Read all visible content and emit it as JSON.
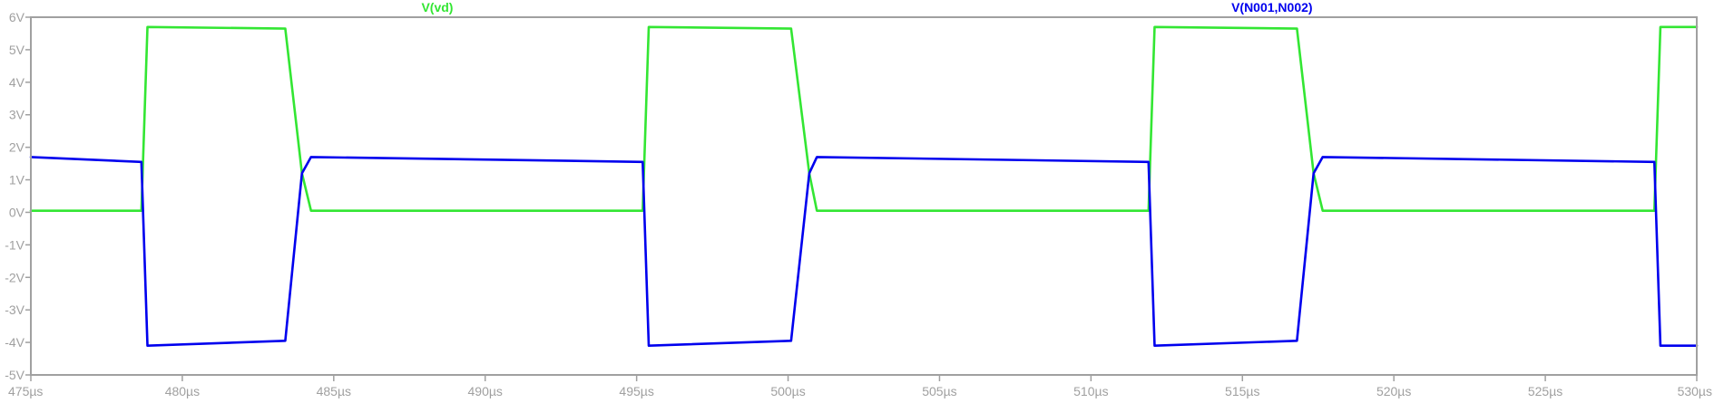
{
  "chart_data": {
    "type": "line",
    "title": "",
    "xlabel": "",
    "ylabel": "",
    "xlim": [
      475,
      530
    ],
    "ylim": [
      -5,
      6
    ],
    "x_ticks": [
      475,
      480,
      485,
      490,
      495,
      500,
      505,
      510,
      515,
      520,
      525,
      530
    ],
    "x_tick_labels": [
      "475µs",
      "480µs",
      "485µs",
      "490µs",
      "495µs",
      "500µs",
      "505µs",
      "510µs",
      "515µs",
      "520µs",
      "525µs",
      "530µs"
    ],
    "y_ticks": [
      -5,
      -4,
      -3,
      -2,
      -1,
      0,
      1,
      2,
      3,
      4,
      5,
      6
    ],
    "y_tick_labels": [
      "-5V",
      "-4V",
      "-3V",
      "-2V",
      "-1V",
      "0V",
      "1V",
      "2V",
      "3V",
      "4V",
      "5V",
      "6V"
    ],
    "grid": false,
    "legend_position": "top",
    "colors": {
      "frame": "#a0a0a0",
      "tick_text": "#a0a0a0"
    },
    "series": [
      {
        "name": "V(vd)",
        "color": "#33e633",
        "x": [
          475,
          478.65,
          478.85,
          483.4,
          483.95,
          484.25,
          495.2,
          495.4,
          500.1,
          500.7,
          500.95,
          511.9,
          512.1,
          516.8,
          517.35,
          517.65,
          528.6,
          528.8,
          530
        ],
        "y": [
          0.05,
          0.05,
          5.7,
          5.65,
          1.2,
          0.05,
          0.05,
          5.7,
          5.65,
          1.2,
          0.05,
          0.05,
          5.7,
          5.65,
          1.2,
          0.05,
          0.05,
          5.7,
          5.7
        ]
      },
      {
        "name": "V(N001,N002)",
        "color": "#0000ee",
        "x": [
          475,
          478.65,
          478.85,
          483.4,
          483.95,
          484.25,
          495.2,
          495.4,
          500.1,
          500.7,
          500.95,
          511.9,
          512.1,
          516.8,
          517.35,
          517.65,
          528.6,
          528.8,
          530
        ],
        "y": [
          1.7,
          1.55,
          -4.1,
          -3.95,
          1.2,
          1.7,
          1.55,
          -4.1,
          -3.95,
          1.2,
          1.7,
          1.55,
          -4.1,
          -3.95,
          1.2,
          1.7,
          1.55,
          -4.1,
          -4.1
        ]
      }
    ]
  }
}
